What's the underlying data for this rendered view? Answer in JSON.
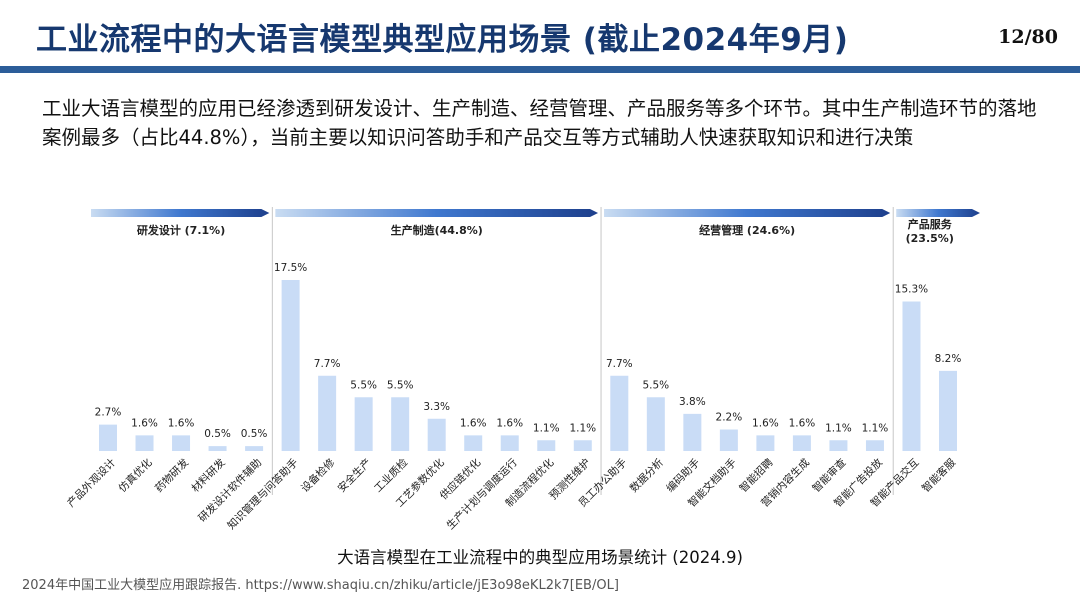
{
  "header": {
    "title": "工业流程中的大语言模型典型应用场景 (截止2024年9月)",
    "page_number": "12/80"
  },
  "intro": "工业大语言模型的应用已经渗透到研发设计、生产制造、经营管理、产品服务等多个环节。其中生产制造环节的落地案例最多（占比44.8%），当前主要以知识问答助手和产品交互等方式辅助人快速获取知识和进行决策",
  "colors": {
    "title": "#16386f",
    "rule": "#2c5d99",
    "bar": "#c9dcf6",
    "divider": "#c7c7c7",
    "group_arrow_start": "#c9dcf2",
    "group_arrow_end": "#1d3f8c"
  },
  "chart_data": {
    "type": "bar",
    "groups": [
      {
        "label": "研发设计 (7.1%)",
        "start": 0,
        "end": 4
      },
      {
        "label": "生产制造(44.8%)",
        "start": 5,
        "end": 13
      },
      {
        "label": "经营管理 (24.6%)",
        "start": 14,
        "end": 21
      },
      {
        "label_lines": [
          "产品服务",
          "(23.5%)"
        ],
        "start": 22,
        "end": 23
      }
    ],
    "categories": [
      "产品外观设计",
      "仿真优化",
      "药物研发",
      "材料研发",
      "研发设计软件辅助",
      "知识管理与问答助手",
      "设备检修",
      "安全生产",
      "工业质检",
      "工艺参数优化",
      "供应链优化",
      "生产计划与调度运行",
      "制造流程优化",
      "预测性维护",
      "员工办公助手",
      "数据分析",
      "编码助手",
      "智能文档助手",
      "智能招聘",
      "营销内容生成",
      "智能审查",
      "智能广告投放",
      "智能产品交互",
      "智能客服"
    ],
    "values": [
      2.7,
      1.6,
      1.6,
      0.5,
      0.5,
      17.5,
      7.7,
      5.5,
      5.5,
      3.3,
      1.6,
      1.6,
      1.1,
      1.1,
      7.7,
      5.5,
      3.8,
      2.2,
      1.6,
      1.6,
      1.1,
      1.1,
      15.3,
      8.2
    ],
    "value_labels": [
      "2.7%",
      "1.6%",
      "1.6%",
      "0.5%",
      "0.5%",
      "17.5%",
      "7.7%",
      "5.5%",
      "5.5%",
      "3.3%",
      "1.6%",
      "1.6%",
      "1.1%",
      "1.1%",
      "7.7%",
      "5.5%",
      "3.8%",
      "2.2%",
      "1.6%",
      "1.6%",
      "1.1%",
      "1.1%",
      "15.3%",
      "8.2%"
    ],
    "ylim": [
      0,
      17.5
    ],
    "title": "",
    "xlabel": "",
    "ylabel": ""
  },
  "caption": "大语言模型在工业流程中的典型应用场景统计 (2024.9)",
  "source": "2024年中国工业大模型应用跟踪报告. https://www.shaqiu.cn/zhiku/article/jE3o98eKL2k7[EB/OL]"
}
